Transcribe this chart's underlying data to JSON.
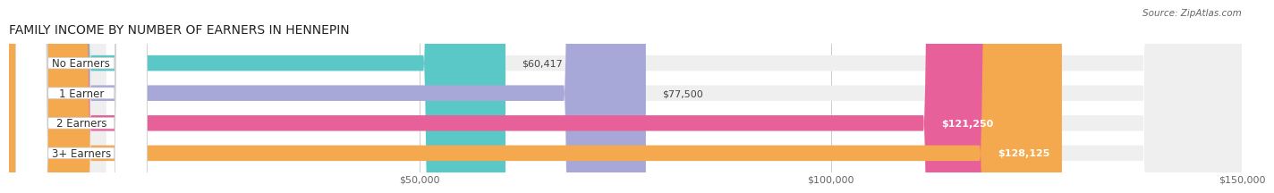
{
  "title": "FAMILY INCOME BY NUMBER OF EARNERS IN HENNEPIN",
  "source": "Source: ZipAtlas.com",
  "categories": [
    "No Earners",
    "1 Earner",
    "2 Earners",
    "3+ Earners"
  ],
  "values": [
    60417,
    77500,
    121250,
    128125
  ],
  "bar_colors": [
    "#5bc8c8",
    "#a8a8d8",
    "#e8609a",
    "#f5a94e"
  ],
  "bar_bg_color": "#efefef",
  "xmax": 150000,
  "xticks": [
    50000,
    100000,
    150000
  ],
  "xtick_labels": [
    "$50,000",
    "$100,000",
    "$150,000"
  ],
  "value_labels": [
    "$60,417",
    "$77,500",
    "$121,250",
    "$128,125"
  ],
  "title_fontsize": 10,
  "source_fontsize": 7.5,
  "bar_label_fontsize": 8.5,
  "value_fontsize": 8,
  "tick_fontsize": 8,
  "background_color": "#ffffff"
}
